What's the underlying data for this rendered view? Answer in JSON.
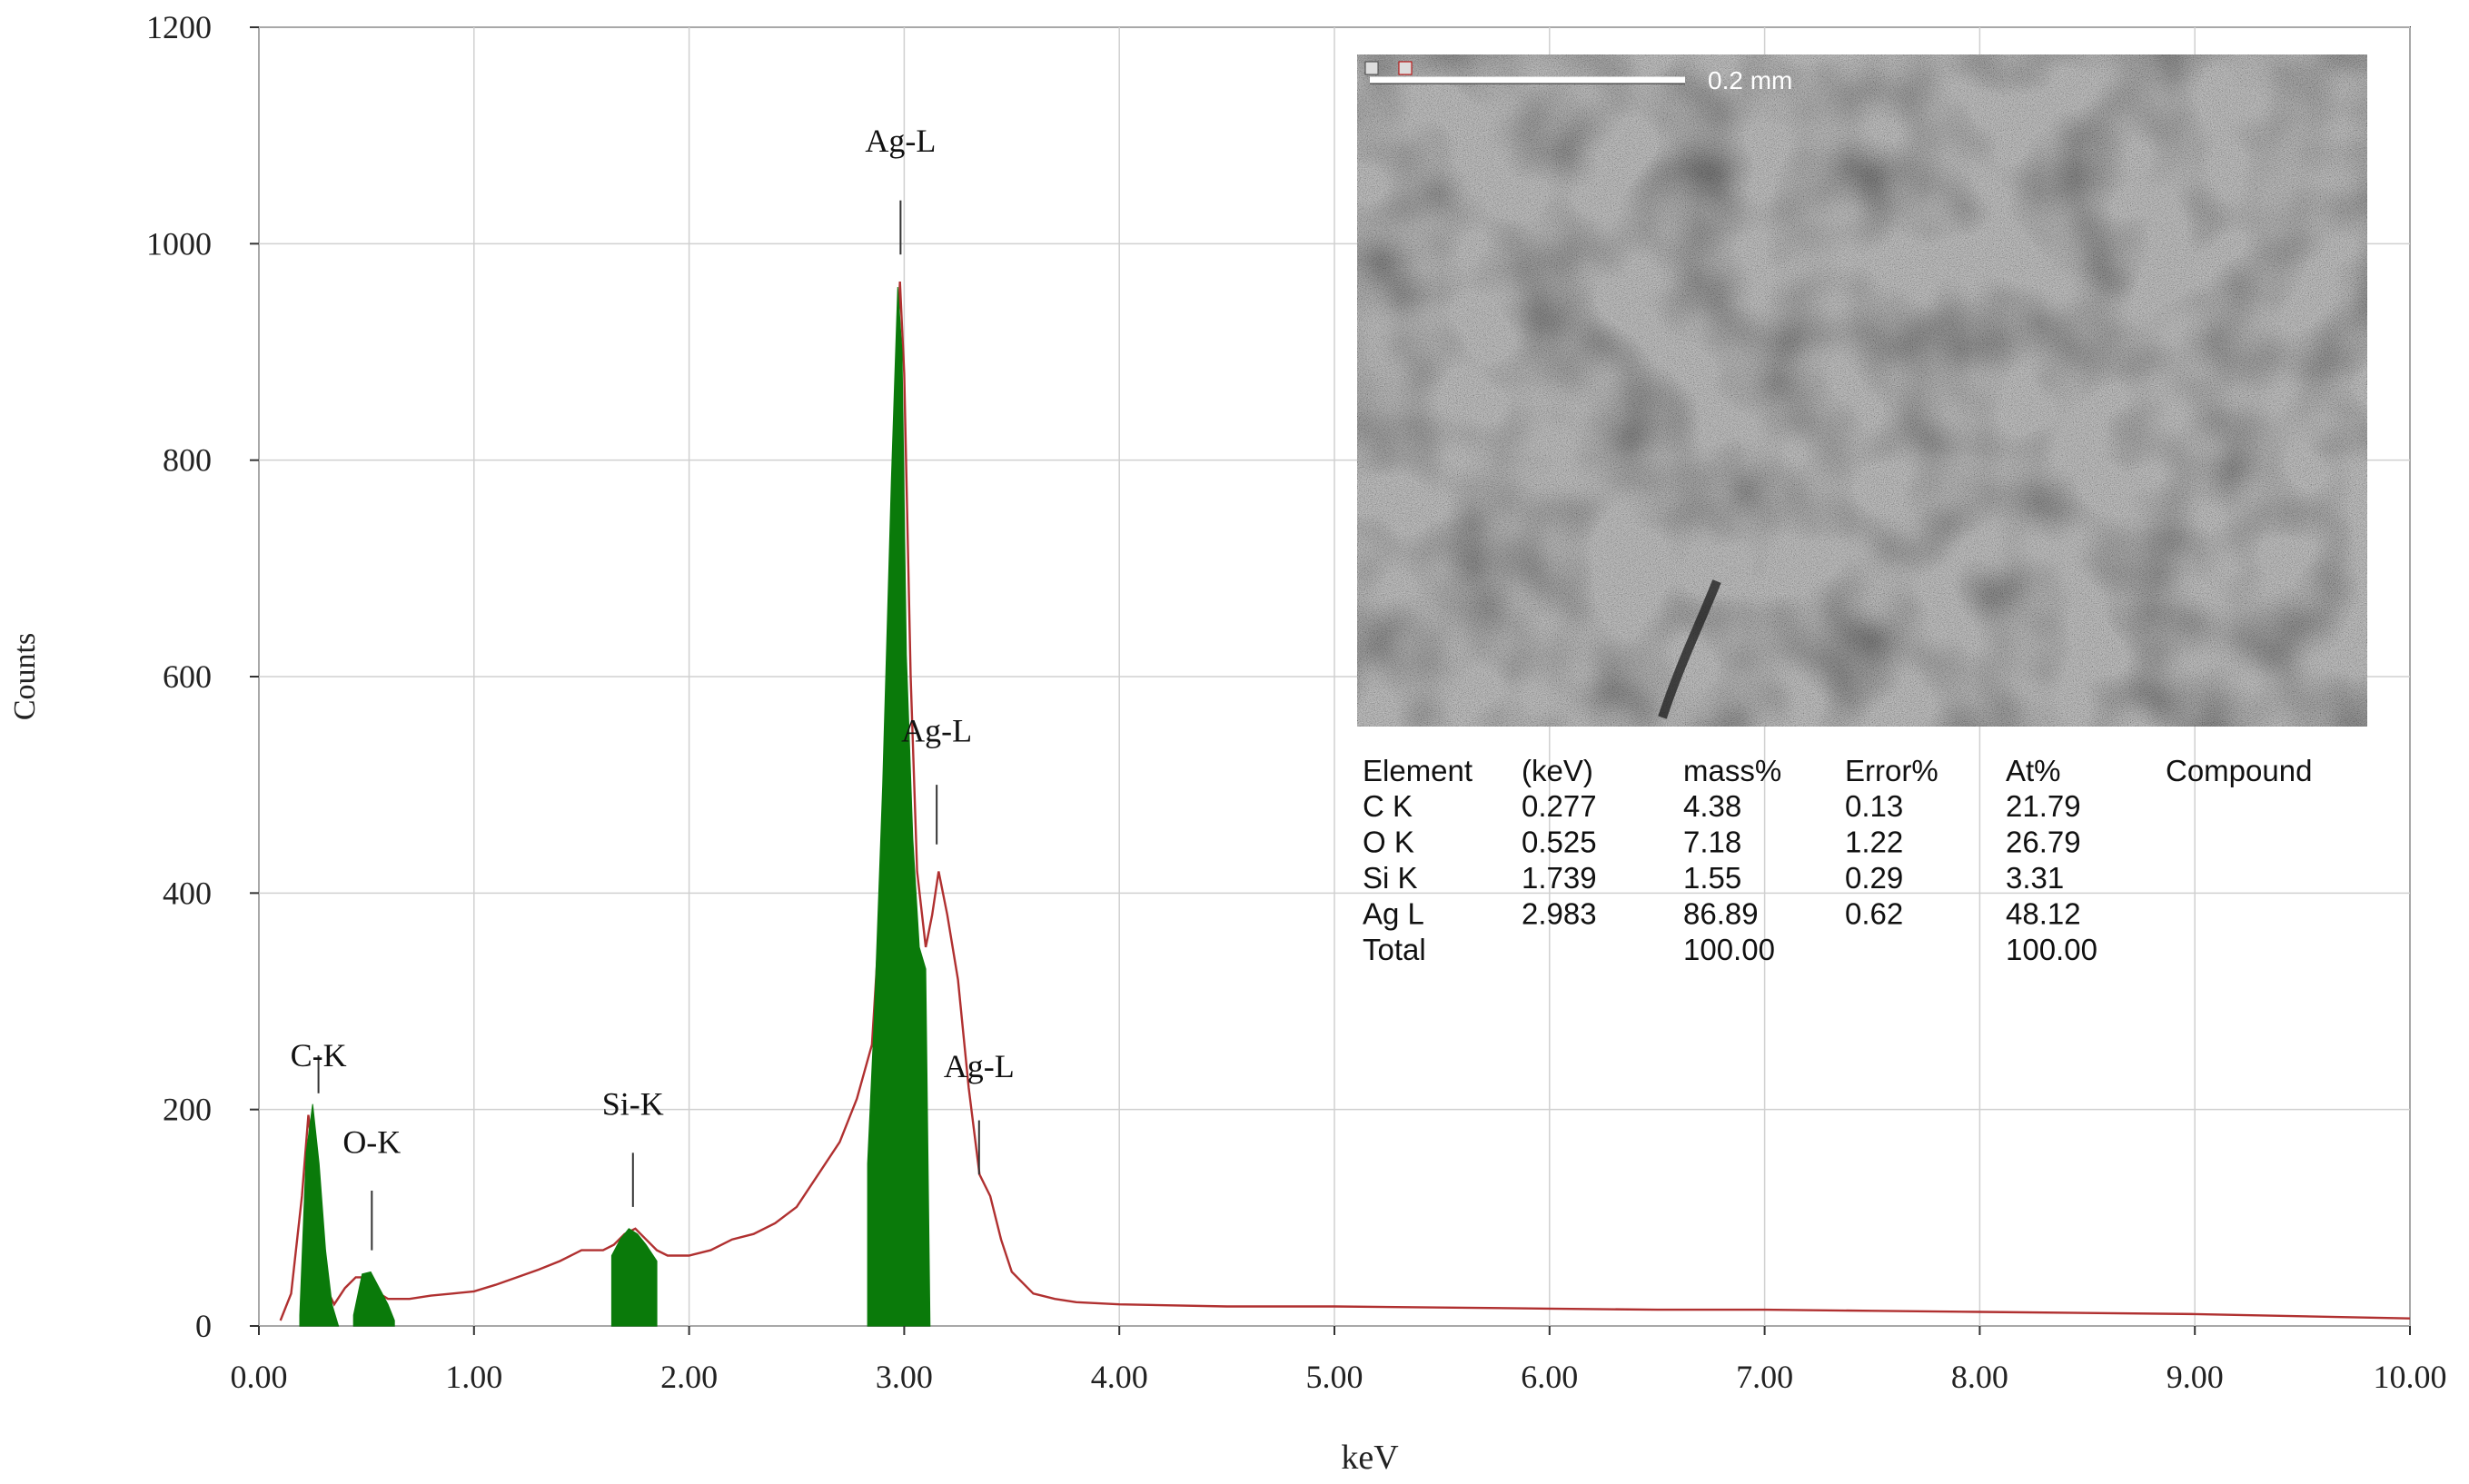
{
  "chart_data": {
    "type": "area",
    "xlabel": "keV",
    "ylabel": "Counts",
    "xlim": [
      0,
      10
    ],
    "ylim": [
      0,
      1200
    ],
    "x_ticks": [
      "0.00",
      "1.00",
      "2.00",
      "3.00",
      "4.00",
      "5.00",
      "6.00",
      "7.00",
      "8.00",
      "9.00",
      "10.00"
    ],
    "x_tick_values": [
      0,
      1,
      2,
      3,
      4,
      5,
      6,
      7,
      8,
      9,
      10
    ],
    "y_ticks": [
      "0",
      "200",
      "400",
      "600",
      "800",
      "1000",
      "1200"
    ],
    "y_tick_values": [
      0,
      200,
      400,
      600,
      800,
      1000,
      1200
    ],
    "grid": true,
    "spectrum": {
      "color": "#b03030",
      "x": [
        0.1,
        0.15,
        0.2,
        0.23,
        0.26,
        0.3,
        0.35,
        0.4,
        0.45,
        0.5,
        0.53,
        0.56,
        0.6,
        0.7,
        0.8,
        0.9,
        1.0,
        1.1,
        1.2,
        1.3,
        1.4,
        1.5,
        1.6,
        1.65,
        1.7,
        1.75,
        1.8,
        1.85,
        1.9,
        2.0,
        2.1,
        2.2,
        2.3,
        2.4,
        2.5,
        2.6,
        2.7,
        2.78,
        2.85,
        2.9,
        2.95,
        2.98,
        3.0,
        3.03,
        3.06,
        3.1,
        3.13,
        3.16,
        3.2,
        3.25,
        3.3,
        3.35,
        3.4,
        3.45,
        3.5,
        3.6,
        3.7,
        3.8,
        4.0,
        4.5,
        5.0,
        5.5,
        6.0,
        6.5,
        7.0,
        7.5,
        8.0,
        8.5,
        9.0,
        9.5,
        10.0
      ],
      "y": [
        5,
        30,
        120,
        195,
        140,
        40,
        20,
        35,
        45,
        45,
        40,
        30,
        25,
        25,
        28,
        30,
        32,
        38,
        45,
        52,
        60,
        70,
        70,
        75,
        85,
        90,
        80,
        70,
        65,
        65,
        70,
        80,
        85,
        95,
        110,
        140,
        170,
        210,
        260,
        420,
        800,
        965,
        880,
        600,
        420,
        350,
        380,
        420,
        380,
        320,
        220,
        140,
        120,
        80,
        50,
        30,
        25,
        22,
        20,
        18,
        18,
        17,
        16,
        15,
        15,
        14,
        13,
        12,
        11,
        9,
        7
      ]
    },
    "peaks": [
      {
        "label": "C-K",
        "color": "#0a7a0a",
        "x": [
          0.19,
          0.22,
          0.25,
          0.28,
          0.31,
          0.34,
          0.37
        ],
        "y": [
          10,
          160,
          205,
          150,
          70,
          20,
          0
        ]
      },
      {
        "label": "O-K",
        "color": "#0a7a0a",
        "x": [
          0.44,
          0.48,
          0.52,
          0.56,
          0.6,
          0.63
        ],
        "y": [
          10,
          48,
          50,
          35,
          20,
          5
        ]
      },
      {
        "label": "Si-K",
        "color": "#0a7a0a",
        "x": [
          1.64,
          1.68,
          1.72,
          1.76,
          1.8,
          1.85
        ],
        "y": [
          65,
          80,
          90,
          85,
          75,
          60
        ]
      },
      {
        "label": "Ag-L",
        "color": "#0a7a0a",
        "x": [
          2.83,
          2.86,
          2.9,
          2.94,
          2.97,
          2.99,
          3.01,
          3.04,
          3.07,
          3.1,
          3.12
        ],
        "y": [
          150,
          280,
          500,
          780,
          960,
          900,
          620,
          450,
          350,
          330,
          0
        ]
      }
    ],
    "markers": [
      {
        "label": "C-K",
        "x": 0.277,
        "label_y": 240,
        "tick_y": [
          215,
          250
        ]
      },
      {
        "label": "O-K",
        "x": 0.525,
        "label_y": 160,
        "tick_y": [
          70,
          125
        ]
      },
      {
        "label": "Si-K",
        "x": 1.739,
        "label_y": 195,
        "tick_y": [
          110,
          160
        ]
      },
      {
        "label": "Ag-L",
        "x": 2.983,
        "label_y": 1085,
        "tick_y": 1040,
        "tick_y0": 990
      },
      {
        "label": "Ag-L",
        "x": 3.151,
        "label_y": 540,
        "tick_y": 500,
        "tick_y0": 445
      },
      {
        "label": "Ag-L",
        "x": 3.348,
        "label_y": 230,
        "tick_y": 190,
        "tick_y0": 140
      }
    ],
    "inset": {
      "scale_label": "0.2 mm",
      "table": {
        "headers": [
          "Element",
          "(keV)",
          "mass%",
          "Error%",
          "At%",
          "Compound"
        ],
        "rows": [
          [
            "C  K",
            "0.277",
            "4.38",
            "0.13",
            "21.79",
            ""
          ],
          [
            "O  K",
            "0.525",
            "7.18",
            "1.22",
            "26.79",
            ""
          ],
          [
            "Si K",
            "1.739",
            "1.55",
            "0.29",
            "3.31",
            ""
          ],
          [
            "Ag L",
            "2.983",
            "86.89",
            "0.62",
            "48.12",
            ""
          ],
          [
            "Total",
            "",
            "100.00",
            "",
            "100.00",
            ""
          ]
        ]
      }
    }
  }
}
